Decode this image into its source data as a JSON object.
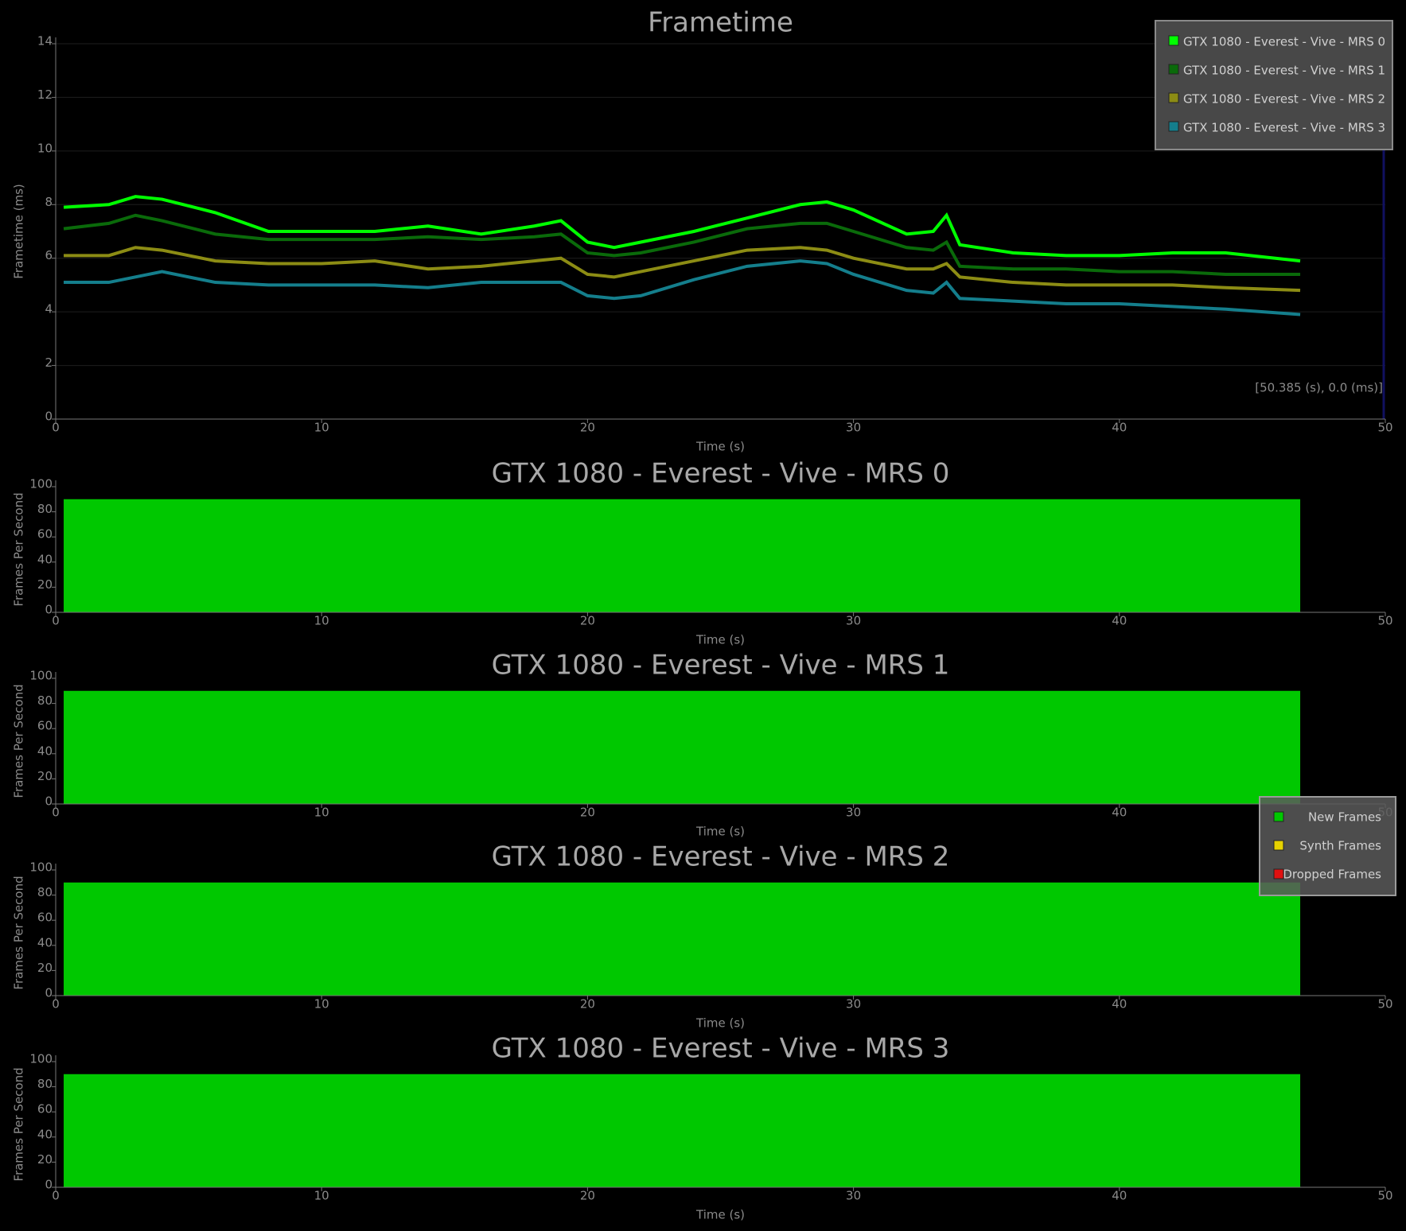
{
  "chart_data": [
    {
      "type": "line",
      "title": "Frametime",
      "x_label": "Time (s)",
      "y_label": "Frametime (ms)",
      "annotation": "[50.385 (s), 0.0 (ms)]",
      "x": [
        0.3,
        2,
        3,
        4,
        6,
        8,
        10,
        12,
        14,
        16,
        18,
        19,
        20,
        21,
        22,
        24,
        26,
        28,
        29,
        30,
        32,
        33,
        33.5,
        34,
        36,
        38,
        40,
        42,
        44,
        46.8
      ],
      "series": [
        {
          "name": "GTX 1080 - Everest - Vive - MRS 0",
          "color": "#00ff00",
          "values": [
            7.9,
            8.0,
            8.3,
            8.2,
            7.7,
            7.0,
            7.0,
            7.0,
            7.2,
            6.9,
            7.2,
            7.4,
            6.6,
            6.4,
            6.6,
            7.0,
            7.5,
            8.0,
            8.1,
            7.8,
            6.9,
            7.0,
            7.6,
            6.5,
            6.2,
            6.1,
            6.1,
            6.2,
            6.2,
            5.9
          ]
        },
        {
          "name": "GTX 1080 - Everest - Vive - MRS 1",
          "color": "#0a6a0a",
          "values": [
            7.1,
            7.3,
            7.6,
            7.4,
            6.9,
            6.7,
            6.7,
            6.7,
            6.8,
            6.7,
            6.8,
            6.9,
            6.2,
            6.1,
            6.2,
            6.6,
            7.1,
            7.3,
            7.3,
            7.0,
            6.4,
            6.3,
            6.6,
            5.7,
            5.6,
            5.6,
            5.5,
            5.5,
            5.4,
            5.4
          ]
        },
        {
          "name": "GTX 1080 - Everest - Vive - MRS 2",
          "color": "#8c8c14",
          "values": [
            6.1,
            6.1,
            6.4,
            6.3,
            5.9,
            5.8,
            5.8,
            5.9,
            5.6,
            5.7,
            5.9,
            6.0,
            5.4,
            5.3,
            5.5,
            5.9,
            6.3,
            6.4,
            6.3,
            6.0,
            5.6,
            5.6,
            5.8,
            5.3,
            5.1,
            5.0,
            5.0,
            5.0,
            4.9,
            4.8
          ]
        },
        {
          "name": "GTX 1080 - Everest - Vive - MRS 3",
          "color": "#147e8c",
          "values": [
            5.1,
            5.1,
            5.3,
            5.5,
            5.1,
            5.0,
            5.0,
            5.0,
            4.9,
            5.1,
            5.1,
            5.1,
            4.6,
            4.5,
            4.6,
            5.2,
            5.7,
            5.9,
            5.8,
            5.4,
            4.8,
            4.7,
            5.1,
            4.5,
            4.4,
            4.3,
            4.3,
            4.2,
            4.1,
            3.9
          ]
        }
      ],
      "xlim": [
        0,
        50
      ],
      "xticks": [
        0,
        10,
        20,
        30,
        40,
        50
      ],
      "ylim": [
        0,
        14
      ],
      "yticks": [
        0,
        2,
        4,
        6,
        8,
        10,
        12,
        14
      ],
      "grid": true,
      "legend": "top-right"
    },
    {
      "type": "area",
      "title": "GTX 1080 - Everest - Vive - MRS 0",
      "x_label": "Time (s)",
      "y_label": "Frames Per Second",
      "x": [
        0.3,
        46.8
      ],
      "values": [
        90,
        90
      ],
      "color": "#00c800",
      "xlim": [
        0,
        50
      ],
      "xticks": [
        0,
        10,
        20,
        30,
        40,
        50
      ],
      "ylim": [
        0,
        100
      ],
      "yticks": [
        0,
        20,
        40,
        60,
        80,
        100
      ]
    },
    {
      "type": "area",
      "title": "GTX 1080 - Everest - Vive - MRS 1",
      "x_label": "Time (s)",
      "y_label": "Frames Per Second",
      "x": [
        0.3,
        46.8
      ],
      "values": [
        90,
        90
      ],
      "color": "#00c800",
      "xlim": [
        0,
        50
      ],
      "xticks": [
        0,
        10,
        20,
        30,
        40,
        50
      ],
      "ylim": [
        0,
        100
      ],
      "yticks": [
        0,
        20,
        40,
        60,
        80,
        100
      ]
    },
    {
      "type": "area",
      "title": "GTX 1080 - Everest - Vive - MRS 2",
      "x_label": "Time (s)",
      "y_label": "Frames Per Second",
      "x": [
        0.3,
        46.8
      ],
      "values": [
        90,
        90
      ],
      "color": "#00c800",
      "xlim": [
        0,
        50
      ],
      "xticks": [
        0,
        10,
        20,
        30,
        40,
        50
      ],
      "ylim": [
        0,
        100
      ],
      "yticks": [
        0,
        20,
        40,
        60,
        80,
        100
      ]
    },
    {
      "type": "area",
      "title": "GTX 1080 - Everest - Vive - MRS 3",
      "x_label": "Time (s)",
      "y_label": "Frames Per Second",
      "x": [
        0.3,
        46.8
      ],
      "values": [
        90,
        90
      ],
      "color": "#00c800",
      "xlim": [
        0,
        50
      ],
      "xticks": [
        0,
        10,
        20,
        30,
        40,
        50
      ],
      "ylim": [
        0,
        100
      ],
      "yticks": [
        0,
        20,
        40,
        60,
        80,
        100
      ]
    }
  ],
  "fps_legend": {
    "items": [
      {
        "name": "New Frames",
        "color": "#00c800"
      },
      {
        "name": "Synth Frames",
        "color": "#e6d200"
      },
      {
        "name": "Dropped Frames",
        "color": "#e01010"
      }
    ]
  }
}
